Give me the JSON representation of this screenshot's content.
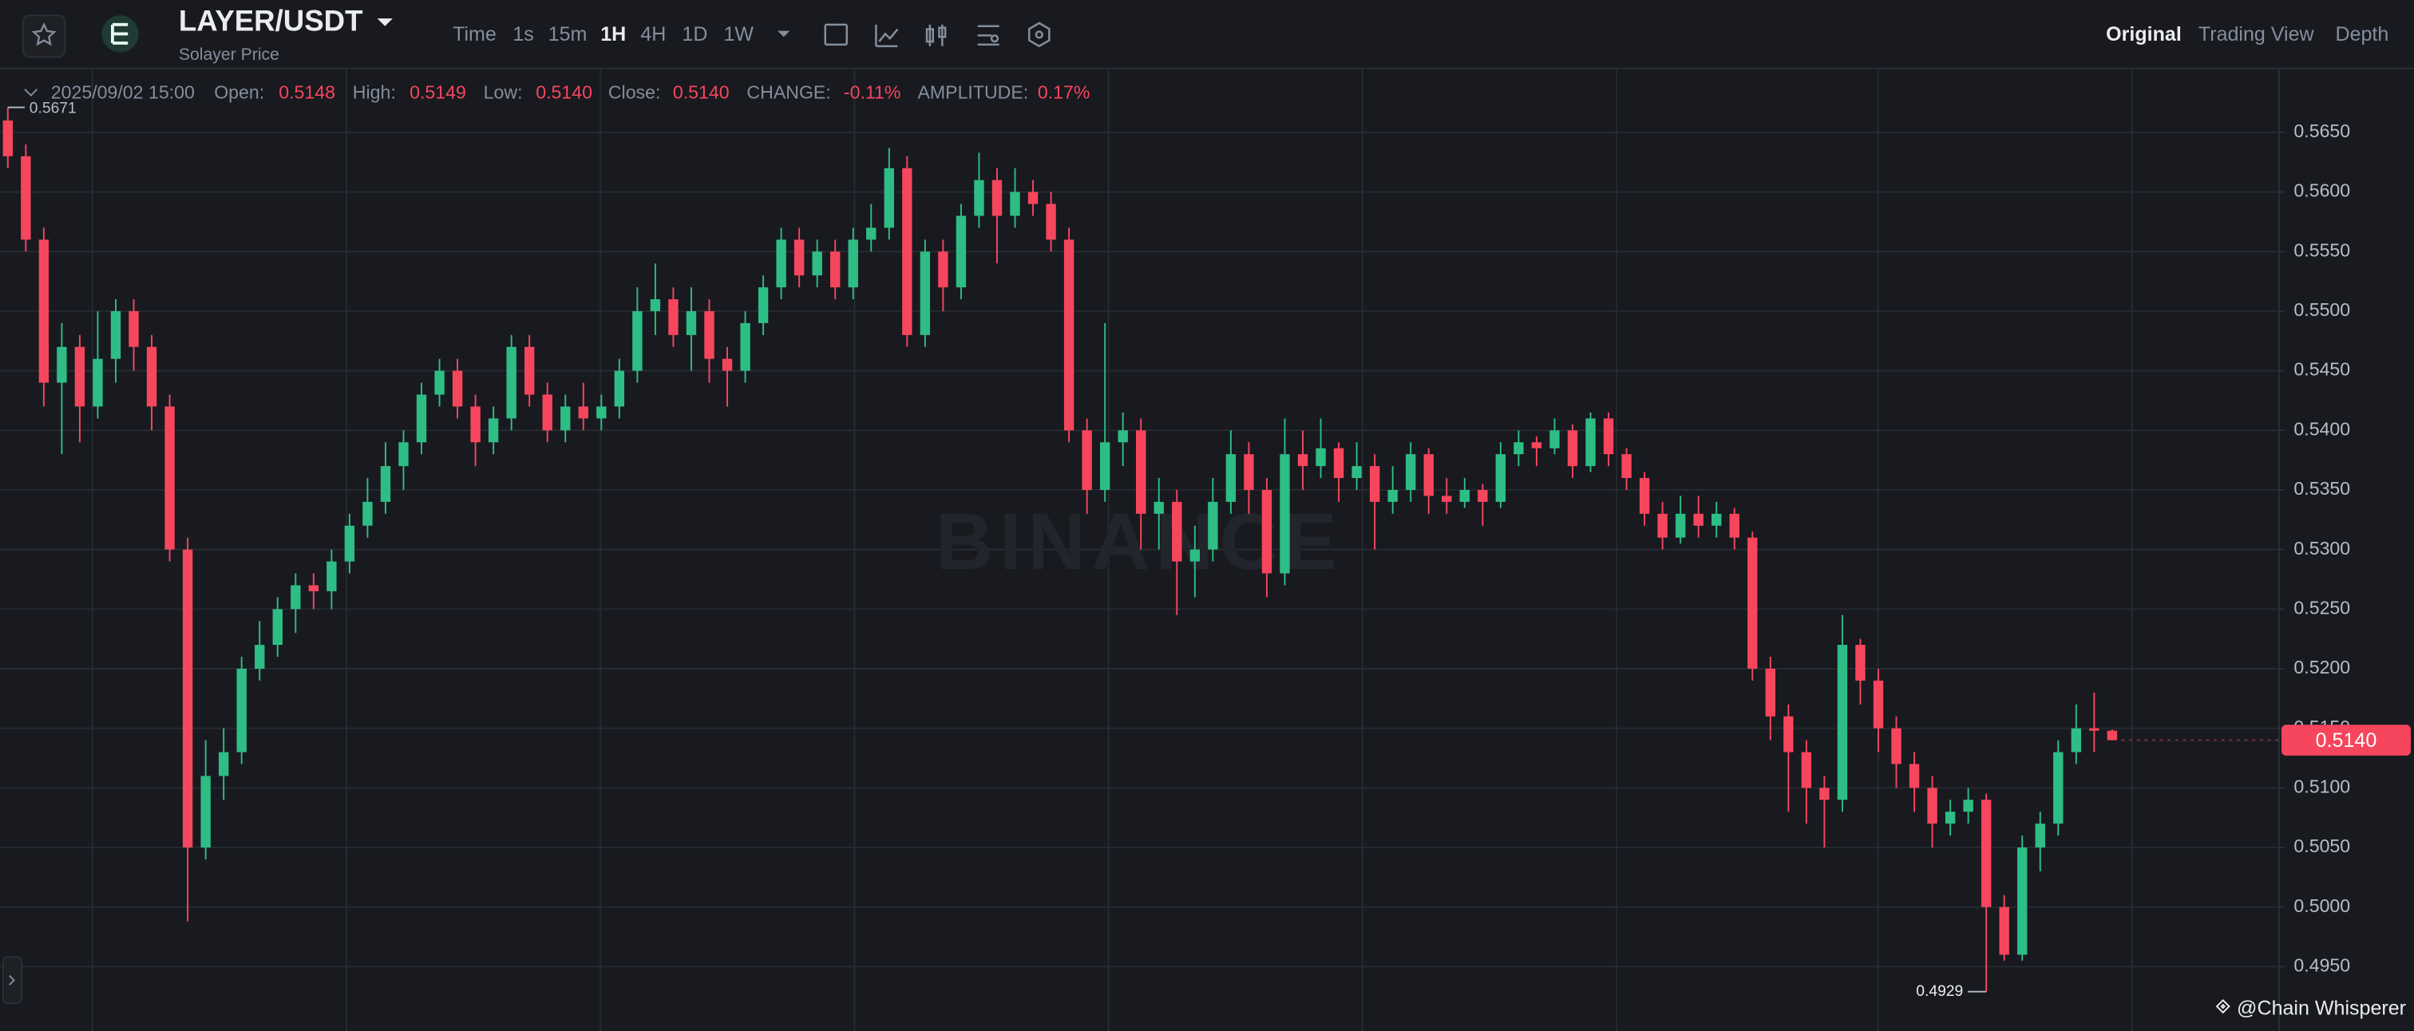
{
  "toolbar": {
    "pair": "LAYER/USDT",
    "subtitle": "Solayer Price",
    "intervals": [
      "Time",
      "1s",
      "15m",
      "1H",
      "4H",
      "1D",
      "1W"
    ],
    "views": [
      "Original",
      "Trading View",
      "Depth"
    ]
  },
  "info_bar": {
    "time": "2025/09/02 15:00",
    "open_label": "Open:",
    "open": "0.5148",
    "high_label": "High:",
    "high": "0.5149",
    "low_label": "Low:",
    "low": "0.5140",
    "close_label": "Close:",
    "close": "0.5140",
    "change_label": "CHANGE:",
    "change": "-0.11%",
    "amplitude_label": "AMPLITUDE:",
    "amplitude": "0.17%"
  },
  "watermark": "BINANCE",
  "credit": "@Chain Whisperer",
  "chart_data": {
    "type": "candlestick",
    "up_color": "#2ebd85",
    "down_color": "#f6465d",
    "grid": true,
    "ylim": [
      0.4896,
      0.5703
    ],
    "yticks": [
      {
        "value": 0.495,
        "label": "0.4950"
      },
      {
        "value": 0.5,
        "label": "0.5000"
      },
      {
        "value": 0.505,
        "label": "0.5050"
      },
      {
        "value": 0.51,
        "label": "0.5100"
      },
      {
        "value": 0.515,
        "label": "0.5150"
      },
      {
        "value": 0.52,
        "label": "0.5200"
      },
      {
        "value": 0.525,
        "label": "0.5250"
      },
      {
        "value": 0.53,
        "label": "0.5300"
      },
      {
        "value": 0.535,
        "label": "0.5350"
      },
      {
        "value": 0.54,
        "label": "0.5400"
      },
      {
        "value": 0.545,
        "label": "0.5450"
      },
      {
        "value": 0.55,
        "label": "0.5500"
      },
      {
        "value": 0.555,
        "label": "0.5550"
      },
      {
        "value": 0.56,
        "label": "0.5600"
      },
      {
        "value": 0.565,
        "label": "0.5650"
      }
    ],
    "high_marker": 0.5671,
    "low_marker": 0.4929,
    "last_price": {
      "value": 0.514,
      "label": "0.5140"
    },
    "categories": [
      null,
      null,
      null,
      null,
      null,
      null,
      null,
      null,
      null,
      null,
      null,
      null,
      null,
      null,
      null,
      null,
      null,
      null,
      null,
      null,
      null,
      null,
      null,
      null,
      null,
      null,
      null,
      null,
      null,
      null,
      null,
      null,
      null,
      null,
      null,
      null,
      null,
      null,
      null,
      null,
      null,
      null,
      null,
      null,
      null,
      null,
      null,
      null,
      null,
      null,
      null,
      null,
      null,
      null,
      null,
      null,
      null,
      null,
      null,
      null,
      null,
      null,
      null,
      null,
      null,
      null,
      null,
      null,
      null,
      null,
      null,
      null,
      null,
      null,
      null,
      null,
      null,
      null,
      null,
      null,
      null,
      null,
      null,
      null,
      null,
      null,
      null,
      null,
      null,
      null,
      null,
      null,
      null,
      null,
      null,
      null,
      null,
      null,
      null,
      null,
      null,
      null,
      null,
      null,
      null,
      null,
      null,
      null,
      null,
      null,
      null,
      null,
      null,
      null,
      null,
      null,
      null,
      null
    ],
    "ohlc": [
      [
        0.566,
        0.5671,
        0.562,
        0.563
      ],
      [
        0.563,
        0.564,
        0.555,
        0.556
      ],
      [
        0.556,
        0.557,
        0.542,
        0.544
      ],
      [
        0.544,
        0.549,
        0.538,
        0.547
      ],
      [
        0.547,
        0.548,
        0.539,
        0.542
      ],
      [
        0.542,
        0.55,
        0.541,
        0.546
      ],
      [
        0.546,
        0.551,
        0.544,
        0.55
      ],
      [
        0.55,
        0.551,
        0.545,
        0.547
      ],
      [
        0.547,
        0.548,
        0.54,
        0.542
      ],
      [
        0.542,
        0.543,
        0.529,
        0.53
      ],
      [
        0.53,
        0.531,
        0.4988,
        0.505
      ],
      [
        0.505,
        0.514,
        0.504,
        0.511
      ],
      [
        0.511,
        0.515,
        0.509,
        0.513
      ],
      [
        0.513,
        0.521,
        0.512,
        0.52
      ],
      [
        0.52,
        0.524,
        0.519,
        0.522
      ],
      [
        0.522,
        0.526,
        0.521,
        0.525
      ],
      [
        0.525,
        0.528,
        0.523,
        0.527
      ],
      [
        0.527,
        0.528,
        0.525,
        0.5265
      ],
      [
        0.5265,
        0.53,
        0.525,
        0.529
      ],
      [
        0.529,
        0.533,
        0.528,
        0.532
      ],
      [
        0.532,
        0.536,
        0.531,
        0.534
      ],
      [
        0.534,
        0.539,
        0.533,
        0.537
      ],
      [
        0.537,
        0.54,
        0.535,
        0.539
      ],
      [
        0.539,
        0.544,
        0.538,
        0.543
      ],
      [
        0.543,
        0.546,
        0.542,
        0.545
      ],
      [
        0.545,
        0.546,
        0.541,
        0.542
      ],
      [
        0.542,
        0.543,
        0.537,
        0.539
      ],
      [
        0.539,
        0.542,
        0.538,
        0.541
      ],
      [
        0.541,
        0.548,
        0.54,
        0.547
      ],
      [
        0.547,
        0.548,
        0.542,
        0.543
      ],
      [
        0.543,
        0.544,
        0.539,
        0.54
      ],
      [
        0.54,
        0.543,
        0.539,
        0.542
      ],
      [
        0.542,
        0.544,
        0.54,
        0.541
      ],
      [
        0.541,
        0.543,
        0.54,
        0.542
      ],
      [
        0.542,
        0.546,
        0.541,
        0.545
      ],
      [
        0.545,
        0.552,
        0.544,
        0.55
      ],
      [
        0.55,
        0.554,
        0.548,
        0.551
      ],
      [
        0.551,
        0.552,
        0.547,
        0.548
      ],
      [
        0.548,
        0.552,
        0.545,
        0.55
      ],
      [
        0.55,
        0.551,
        0.544,
        0.546
      ],
      [
        0.546,
        0.547,
        0.542,
        0.545
      ],
      [
        0.545,
        0.55,
        0.544,
        0.549
      ],
      [
        0.549,
        0.553,
        0.548,
        0.552
      ],
      [
        0.552,
        0.557,
        0.551,
        0.556
      ],
      [
        0.556,
        0.557,
        0.552,
        0.553
      ],
      [
        0.553,
        0.556,
        0.552,
        0.555
      ],
      [
        0.555,
        0.556,
        0.551,
        0.552
      ],
      [
        0.552,
        0.557,
        0.551,
        0.556
      ],
      [
        0.556,
        0.559,
        0.555,
        0.557
      ],
      [
        0.557,
        0.5637,
        0.556,
        0.562
      ],
      [
        0.562,
        0.563,
        0.547,
        0.548
      ],
      [
        0.548,
        0.556,
        0.547,
        0.555
      ],
      [
        0.555,
        0.556,
        0.55,
        0.552
      ],
      [
        0.552,
        0.559,
        0.551,
        0.558
      ],
      [
        0.558,
        0.5633,
        0.557,
        0.561
      ],
      [
        0.561,
        0.562,
        0.554,
        0.558
      ],
      [
        0.558,
        0.562,
        0.557,
        0.56
      ],
      [
        0.56,
        0.561,
        0.558,
        0.559
      ],
      [
        0.559,
        0.56,
        0.555,
        0.556
      ],
      [
        0.556,
        0.557,
        0.539,
        0.54
      ],
      [
        0.54,
        0.541,
        0.533,
        0.535
      ],
      [
        0.535,
        0.549,
        0.534,
        0.539
      ],
      [
        0.539,
        0.5415,
        0.537,
        0.54
      ],
      [
        0.54,
        0.541,
        0.53,
        0.533
      ],
      [
        0.533,
        0.536,
        0.53,
        0.534
      ],
      [
        0.534,
        0.535,
        0.5245,
        0.529
      ],
      [
        0.529,
        0.532,
        0.526,
        0.53
      ],
      [
        0.53,
        0.536,
        0.529,
        0.534
      ],
      [
        0.534,
        0.54,
        0.533,
        0.538
      ],
      [
        0.538,
        0.539,
        0.533,
        0.535
      ],
      [
        0.535,
        0.536,
        0.526,
        0.528
      ],
      [
        0.528,
        0.541,
        0.527,
        0.538
      ],
      [
        0.538,
        0.54,
        0.535,
        0.537
      ],
      [
        0.537,
        0.541,
        0.536,
        0.5385
      ],
      [
        0.5385,
        0.539,
        0.534,
        0.536
      ],
      [
        0.536,
        0.539,
        0.535,
        0.537
      ],
      [
        0.537,
        0.538,
        0.53,
        0.534
      ],
      [
        0.534,
        0.537,
        0.533,
        0.535
      ],
      [
        0.535,
        0.539,
        0.534,
        0.538
      ],
      [
        0.538,
        0.5385,
        0.533,
        0.5345
      ],
      [
        0.5345,
        0.536,
        0.533,
        0.534
      ],
      [
        0.534,
        0.536,
        0.5335,
        0.535
      ],
      [
        0.535,
        0.5355,
        0.532,
        0.534
      ],
      [
        0.534,
        0.539,
        0.5335,
        0.538
      ],
      [
        0.538,
        0.54,
        0.537,
        0.539
      ],
      [
        0.539,
        0.5395,
        0.537,
        0.5385
      ],
      [
        0.5385,
        0.541,
        0.538,
        0.54
      ],
      [
        0.54,
        0.5405,
        0.536,
        0.537
      ],
      [
        0.537,
        0.5415,
        0.5365,
        0.541
      ],
      [
        0.541,
        0.5415,
        0.537,
        0.538
      ],
      [
        0.538,
        0.5385,
        0.535,
        0.536
      ],
      [
        0.536,
        0.5365,
        0.532,
        0.533
      ],
      [
        0.533,
        0.534,
        0.53,
        0.531
      ],
      [
        0.531,
        0.5345,
        0.5305,
        0.533
      ],
      [
        0.533,
        0.5345,
        0.531,
        0.532
      ],
      [
        0.532,
        0.534,
        0.531,
        0.533
      ],
      [
        0.533,
        0.5335,
        0.53,
        0.531
      ],
      [
        0.531,
        0.5315,
        0.519,
        0.52
      ],
      [
        0.52,
        0.521,
        0.514,
        0.516
      ],
      [
        0.516,
        0.517,
        0.508,
        0.513
      ],
      [
        0.513,
        0.514,
        0.507,
        0.51
      ],
      [
        0.51,
        0.511,
        0.505,
        0.509
      ],
      [
        0.509,
        0.5245,
        0.508,
        0.522
      ],
      [
        0.522,
        0.5225,
        0.517,
        0.519
      ],
      [
        0.519,
        0.52,
        0.513,
        0.515
      ],
      [
        0.515,
        0.516,
        0.51,
        0.512
      ],
      [
        0.512,
        0.513,
        0.508,
        0.51
      ],
      [
        0.51,
        0.511,
        0.505,
        0.507
      ],
      [
        0.507,
        0.509,
        0.506,
        0.508
      ],
      [
        0.508,
        0.51,
        0.507,
        0.509
      ],
      [
        0.509,
        0.5095,
        0.4929,
        0.5
      ],
      [
        0.5,
        0.501,
        0.4955,
        0.496
      ],
      [
        0.496,
        0.506,
        0.4955,
        0.505
      ],
      [
        0.505,
        0.508,
        0.503,
        0.507
      ],
      [
        0.507,
        0.514,
        0.506,
        0.513
      ],
      [
        0.513,
        0.517,
        0.512,
        0.515
      ],
      [
        0.515,
        0.518,
        0.513,
        0.5148
      ],
      [
        0.5148,
        0.5149,
        0.514,
        0.514
      ]
    ]
  }
}
